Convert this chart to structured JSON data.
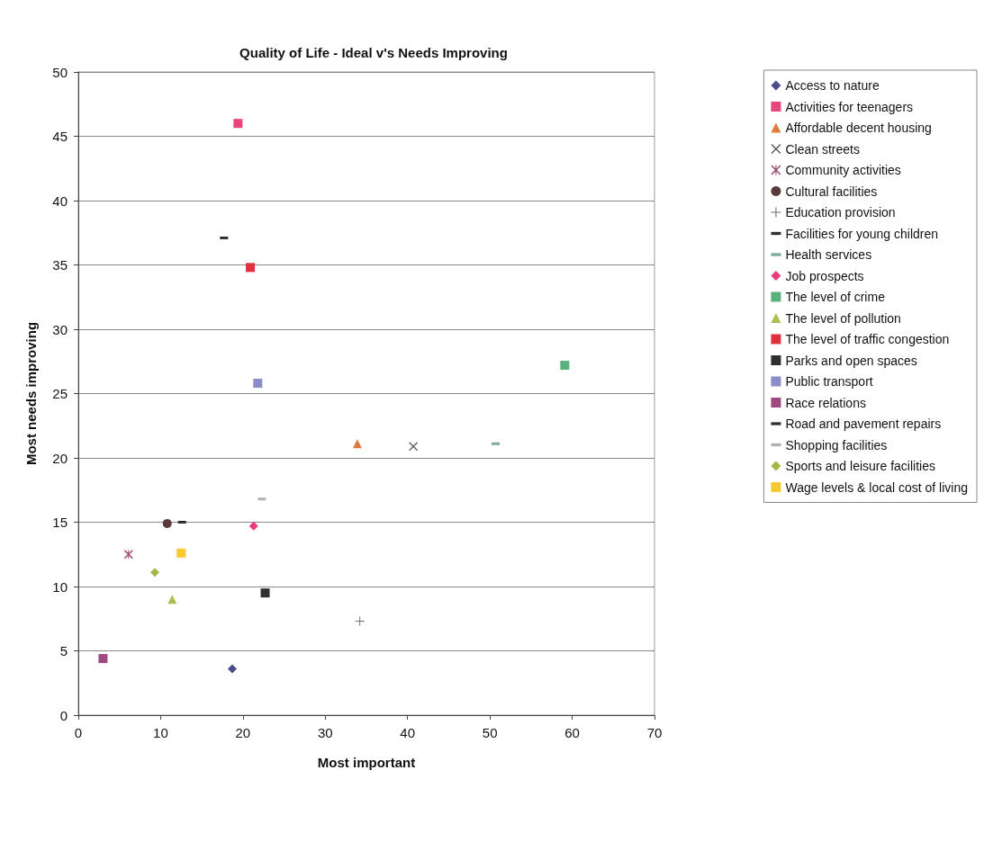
{
  "chart_data": {
    "type": "scatter",
    "title": "Quality of Life - Ideal v's Needs Improving",
    "xlabel": "Most important",
    "ylabel": "Most needs improving",
    "xlim": [
      0,
      70
    ],
    "xticks": [
      0,
      10,
      20,
      30,
      40,
      50,
      60,
      70
    ],
    "ylim": [
      0,
      50
    ],
    "yticks": [
      0,
      5,
      10,
      15,
      20,
      25,
      30,
      35,
      40,
      45,
      50
    ],
    "grid": "y",
    "legend": "right",
    "series": [
      {
        "name": "Access to nature",
        "color": "#4b4b8c",
        "marker": "diamond",
        "x": [
          18.7
        ],
        "values": [
          3.6
        ]
      },
      {
        "name": "Activities for teenagers",
        "color": "#e8457a",
        "marker": "square",
        "x": [
          19.4
        ],
        "values": [
          46.0
        ]
      },
      {
        "name": "Affordable decent housing",
        "color": "#e07a3c",
        "marker": "triangle",
        "x": [
          33.9
        ],
        "values": [
          21.1
        ]
      },
      {
        "name": "Clean streets",
        "color": "#606060",
        "marker": "x",
        "x": [
          40.7
        ],
        "values": [
          20.9
        ]
      },
      {
        "name": "Community activities",
        "color": "#a04870",
        "marker": "asterisk",
        "x": [
          6.1
        ],
        "values": [
          12.5
        ]
      },
      {
        "name": "Cultural facilities",
        "color": "#5a3a3a",
        "marker": "circle",
        "x": [
          10.8
        ],
        "values": [
          14.9
        ]
      },
      {
        "name": "Education provision",
        "color": "#707070",
        "marker": "plus",
        "x": [
          34.2
        ],
        "values": [
          7.3
        ]
      },
      {
        "name": "Facilities for young children",
        "color": "#303030",
        "x": [
          12.6
        ],
        "values": [
          15.0
        ]
      },
      {
        "name": "Health services",
        "color": "#7aa8a0",
        "x": [
          50.7
        ],
        "values": [
          21.1
        ]
      },
      {
        "name": "Job prospects",
        "color": "#e83c7c",
        "marker": "diamond",
        "x": [
          21.3
        ],
        "values": [
          14.7
        ]
      },
      {
        "name": "The level of crime",
        "color": "#5cb07c",
        "marker": "square",
        "x": [
          59.1
        ],
        "values": [
          27.2
        ]
      },
      {
        "name": "The level of pollution",
        "color": "#a8c050",
        "marker": "triangle",
        "x": [
          11.4
        ],
        "values": [
          9.0
        ]
      },
      {
        "name": "The level of traffic congestion",
        "color": "#e03040",
        "marker": "square",
        "x": [
          20.9
        ],
        "values": [
          34.8
        ]
      },
      {
        "name": "Parks and open spaces",
        "color": "#303030",
        "marker": "square",
        "x": [
          22.7
        ],
        "values": [
          9.5
        ]
      },
      {
        "name": "Public transport",
        "color": "#8c8cc8",
        "marker": "square",
        "x": [
          21.8
        ],
        "values": [
          25.8
        ]
      },
      {
        "name": "Race relations",
        "color": "#a04880",
        "marker": "square",
        "x": [
          3.0
        ],
        "values": [
          4.4
        ]
      },
      {
        "name": "Road and pavement repairs",
        "color": "#303030",
        "x": [
          17.7
        ],
        "values": [
          37.1
        ]
      },
      {
        "name": "Shopping facilities",
        "color": "#b0b0b0",
        "x": [
          22.3
        ],
        "values": [
          16.8
        ]
      },
      {
        "name": "Sports and leisure facilities",
        "color": "#a0b848",
        "marker": "diamond",
        "x": [
          9.3
        ],
        "values": [
          11.1
        ]
      },
      {
        "name": "Wage levels & local cost of living",
        "color": "#f8c830",
        "marker": "square",
        "x": [
          12.5
        ],
        "values": [
          12.6
        ]
      }
    ]
  }
}
